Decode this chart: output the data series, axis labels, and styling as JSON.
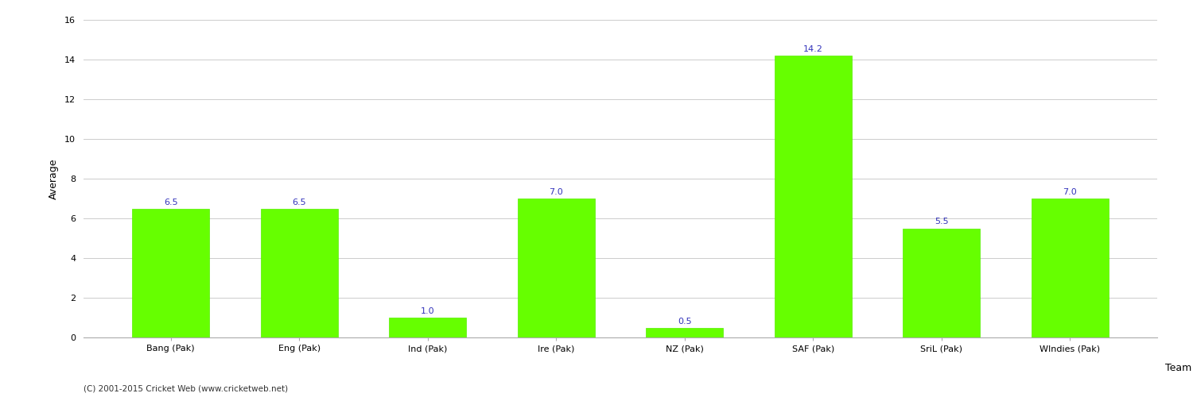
{
  "categories": [
    "Bang (Pak)",
    "Eng (Pak)",
    "Ind (Pak)",
    "Ire (Pak)",
    "NZ (Pak)",
    "SAF (Pak)",
    "SriL (Pak)",
    "WIndies (Pak)"
  ],
  "values": [
    6.5,
    6.5,
    1.0,
    7.0,
    0.5,
    14.2,
    5.5,
    7.0
  ],
  "bar_color": "#66ff00",
  "bar_edge_color": "#55ee00",
  "label_color": "#3333bb",
  "xlabel": "Team",
  "ylabel": "Average",
  "ylim": [
    0,
    16
  ],
  "yticks": [
    0,
    2,
    4,
    6,
    8,
    10,
    12,
    14,
    16
  ],
  "background_color": "#ffffff",
  "grid_color": "#cccccc",
  "footer": "(C) 2001-2015 Cricket Web (www.cricketweb.net)",
  "label_fontsize": 8,
  "axis_label_fontsize": 9,
  "tick_fontsize": 8,
  "footer_fontsize": 7.5
}
